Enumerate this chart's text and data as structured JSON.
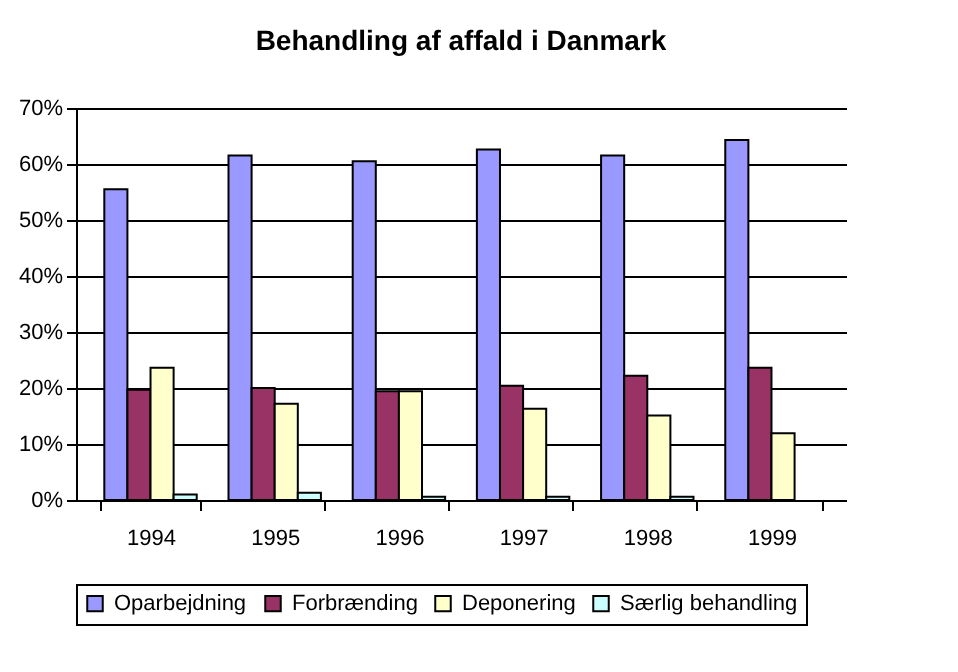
{
  "chart_data": {
    "type": "bar",
    "title": "Behandling af affald i Danmark",
    "categories": [
      "1994",
      "1995",
      "1996",
      "1997",
      "1998",
      "1999"
    ],
    "series": [
      {
        "name": "Oparbejdning",
        "color": "#9999ff",
        "values": [
          55.5,
          61.5,
          60.5,
          62.6,
          61.5,
          64.3
        ]
      },
      {
        "name": "Forbrænding",
        "color": "#993366",
        "values": [
          19.7,
          20.0,
          19.4,
          20.4,
          22.2,
          23.6
        ]
      },
      {
        "name": "Deponering",
        "color": "#ffffcc",
        "values": [
          23.6,
          17.2,
          19.4,
          16.3,
          15.1,
          11.9
        ]
      },
      {
        "name": "Særlig behandling",
        "color": "#ccffff",
        "values": [
          1.0,
          1.3,
          0.6,
          0.6,
          0.6,
          null
        ]
      }
    ],
    "ylim": [
      0,
      70
    ],
    "yticks": [
      {
        "value": 0,
        "label": "0%"
      },
      {
        "value": 10,
        "label": "10%"
      },
      {
        "value": 20,
        "label": "20%"
      },
      {
        "value": 30,
        "label": "30%"
      },
      {
        "value": 40,
        "label": "40%"
      },
      {
        "value": 50,
        "label": "50%"
      },
      {
        "value": 60,
        "label": "60%"
      },
      {
        "value": 70,
        "label": "70%"
      }
    ],
    "grid": "y",
    "legend": "bottom"
  }
}
